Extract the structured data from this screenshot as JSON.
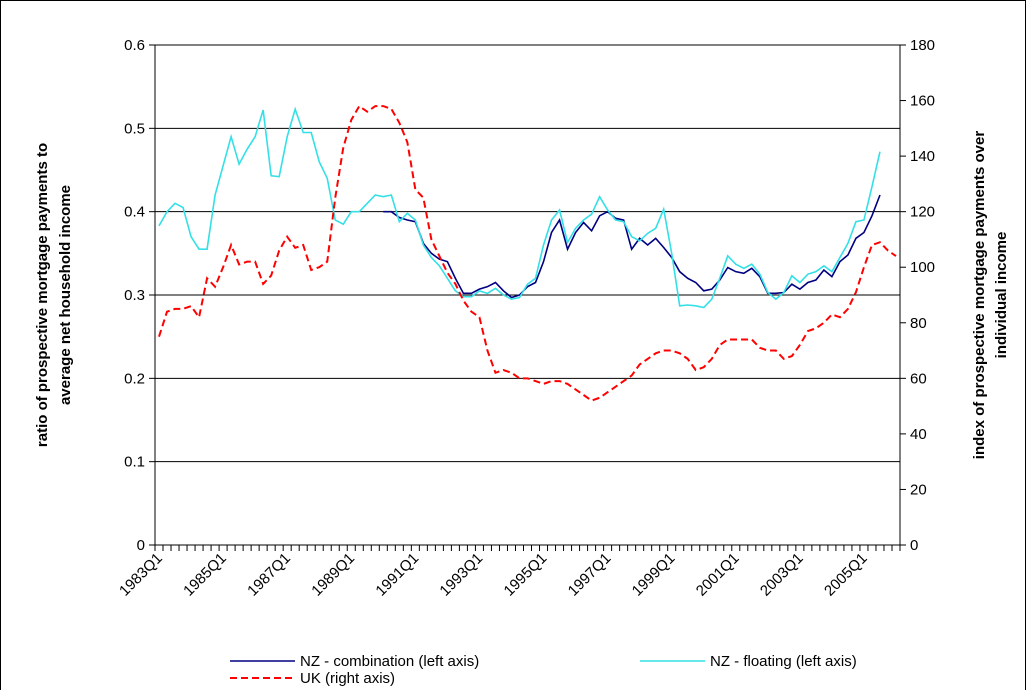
{
  "chart_data": {
    "type": "line",
    "ylabel": [
      "ratio of prospective mortgage payments to",
      "average net household income"
    ],
    "y2label": [
      "index of prospective mortgage payments over",
      "individual income"
    ],
    "categories": [
      "1983Q1",
      null,
      null,
      null,
      null,
      null,
      null,
      null,
      "1985Q1",
      null,
      null,
      null,
      null,
      null,
      null,
      null,
      "1987Q1",
      null,
      null,
      null,
      null,
      null,
      null,
      null,
      "1989Q1",
      null,
      null,
      null,
      null,
      null,
      null,
      null,
      "1991Q1",
      null,
      null,
      null,
      null,
      null,
      null,
      null,
      "1993Q1",
      null,
      null,
      null,
      null,
      null,
      null,
      null,
      "1995Q1",
      null,
      null,
      null,
      null,
      null,
      null,
      null,
      "1997Q1",
      null,
      null,
      null,
      null,
      null,
      null,
      null,
      "1999Q1",
      null,
      null,
      null,
      null,
      null,
      null,
      null,
      "2001Q1",
      null,
      null,
      null,
      null,
      null,
      null,
      null,
      "2003Q1",
      null,
      null,
      null,
      null,
      null,
      null,
      null,
      "2005Q1",
      null,
      null,
      null,
      null
    ],
    "ylim": [
      0,
      0.6
    ],
    "yticks": [
      0,
      0.1,
      0.2,
      0.3,
      0.4,
      0.5,
      0.6
    ],
    "y2lim": [
      0,
      180
    ],
    "y2ticks": [
      0,
      20,
      40,
      60,
      80,
      100,
      120,
      140,
      160,
      180
    ],
    "grid": true,
    "legend": "bottom",
    "series": [
      {
        "name": "NZ - combination (left axis)",
        "color": "#000080",
        "dash": false,
        "values": [
          null,
          null,
          null,
          null,
          null,
          null,
          null,
          null,
          null,
          null,
          null,
          null,
          null,
          null,
          null,
          null,
          null,
          null,
          null,
          null,
          null,
          null,
          null,
          null,
          null,
          null,
          null,
          null,
          0.4,
          0.4,
          0.393,
          0.39,
          0.388,
          0.362,
          0.35,
          0.343,
          0.34,
          0.32,
          0.302,
          0.302,
          0.307,
          0.31,
          0.315,
          0.305,
          0.297,
          0.3,
          0.31,
          0.315,
          0.34,
          0.375,
          0.39,
          0.355,
          0.375,
          0.387,
          0.377,
          0.395,
          0.4,
          0.392,
          0.39,
          0.355,
          0.368,
          0.36,
          0.368,
          0.357,
          0.345,
          0.328,
          0.32,
          0.315,
          0.305,
          0.307,
          0.318,
          0.333,
          0.328,
          0.326,
          0.332,
          0.322,
          0.302,
          0.302,
          0.303,
          0.313,
          0.307,
          0.315,
          0.318,
          0.33,
          0.322,
          0.34,
          0.348,
          0.368,
          0.375,
          0.395,
          0.42,
          null,
          null
        ]
      },
      {
        "name": "NZ - floating (left axis)",
        "color": "#33e0e6",
        "dash": false,
        "values": [
          0.383,
          0.4,
          0.41,
          0.405,
          0.37,
          0.355,
          0.355,
          0.42,
          0.455,
          0.49,
          0.457,
          0.475,
          0.49,
          0.522,
          0.443,
          0.442,
          0.49,
          0.523,
          0.495,
          0.495,
          0.46,
          0.44,
          0.39,
          0.385,
          0.4,
          0.4,
          0.41,
          0.42,
          0.418,
          0.42,
          0.388,
          0.398,
          0.39,
          0.36,
          0.345,
          0.335,
          0.32,
          0.305,
          0.298,
          0.298,
          0.305,
          0.302,
          0.308,
          0.3,
          0.295,
          0.297,
          0.313,
          0.32,
          0.36,
          0.39,
          0.402,
          0.363,
          0.38,
          0.39,
          0.397,
          0.418,
          0.402,
          0.39,
          0.388,
          0.37,
          0.365,
          0.374,
          0.38,
          0.403,
          0.35,
          0.287,
          0.288,
          0.287,
          0.285,
          0.295,
          0.32,
          0.347,
          0.337,
          0.332,
          0.337,
          0.325,
          0.303,
          0.295,
          0.303,
          0.323,
          0.315,
          0.325,
          0.328,
          0.335,
          0.328,
          0.345,
          0.362,
          0.388,
          0.39,
          0.43,
          0.472,
          null,
          null
        ]
      },
      {
        "name": "UK (right axis)",
        "color": "#ff0000",
        "dash": true,
        "axis": "y2",
        "values": [
          75,
          84,
          85,
          85,
          86,
          82,
          96,
          93,
          100,
          108,
          101,
          102,
          102,
          94,
          97,
          106,
          111,
          107,
          108,
          99,
          100,
          102,
          125,
          143,
          153,
          158,
          156,
          158,
          158,
          157,
          152,
          145,
          128,
          125,
          110,
          104,
          98,
          94,
          88,
          84,
          82,
          70,
          62,
          63,
          62,
          60,
          60,
          59,
          58,
          59,
          59,
          58,
          56,
          54,
          52,
          53,
          55,
          57,
          59,
          61,
          65,
          67,
          69,
          70,
          70,
          69,
          67,
          63,
          64,
          67,
          72,
          74,
          74,
          74,
          74,
          71,
          70,
          70,
          67,
          68,
          72,
          77,
          78,
          80,
          83,
          82,
          85,
          91,
          100,
          108,
          109,
          106,
          104
        ]
      }
    ]
  }
}
